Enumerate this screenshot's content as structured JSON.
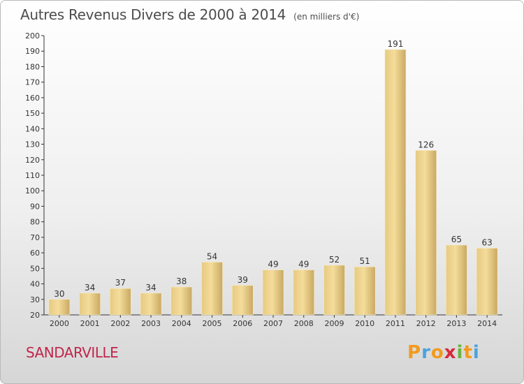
{
  "header": {
    "title": "Autres Revenus Divers de 2000 à 2014",
    "unit": "(en milliers d'€)"
  },
  "footer": {
    "commune": "SANDARVILLE",
    "logo_text": "Proxiti"
  },
  "colors": {
    "bar_light": "#f6e0a0",
    "bar_dark": "#d6b86e",
    "commune": "#c0264b"
  },
  "chart_data": {
    "type": "bar",
    "title": "Autres Revenus Divers de 2000 à 2014",
    "subtitle": "(en milliers d'€)",
    "xlabel": "",
    "ylabel": "",
    "categories": [
      "2000",
      "2001",
      "2002",
      "2003",
      "2004",
      "2005",
      "2006",
      "2007",
      "2008",
      "2009",
      "2010",
      "2011",
      "2012",
      "2013",
      "2014"
    ],
    "values": [
      30,
      34,
      37,
      34,
      38,
      54,
      39,
      49,
      49,
      52,
      51,
      191,
      126,
      65,
      63
    ],
    "ylim": [
      20,
      200
    ],
    "yticks": [
      20,
      30,
      40,
      50,
      60,
      70,
      80,
      90,
      100,
      110,
      120,
      130,
      140,
      150,
      160,
      170,
      180,
      190,
      200
    ],
    "grid": false,
    "legend": "none"
  }
}
